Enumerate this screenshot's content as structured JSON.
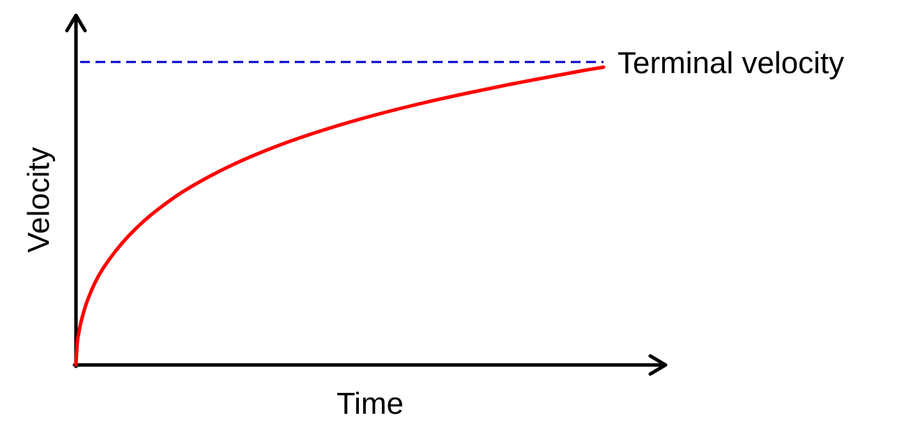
{
  "chart_data": {
    "type": "line",
    "title": "",
    "xlabel": "Time",
    "ylabel": "Velocity",
    "grid": false,
    "xlim": [
      0,
      1
    ],
    "ylim": [
      0,
      1
    ],
    "series": [
      {
        "color": "#ff0000",
        "x": [
          0,
          0.0025,
          0.005,
          0.01,
          0.02,
          0.035,
          0.05,
          0.075,
          0.1,
          0.13,
          0.16,
          0.2,
          0.25,
          0.3,
          0.36,
          0.42,
          0.5,
          0.58,
          0.66,
          0.74,
          0.82,
          0.9,
          0.96,
          1.0
        ],
        "y": [
          0,
          0.063,
          0.089,
          0.126,
          0.178,
          0.233,
          0.274,
          0.327,
          0.371,
          0.415,
          0.452,
          0.495,
          0.539,
          0.577,
          0.616,
          0.65,
          0.689,
          0.723,
          0.753,
          0.78,
          0.805,
          0.828,
          0.845,
          0.855
        ]
      }
    ],
    "reference_lines": [
      {
        "label": "Terminal velocity",
        "y": 0.87,
        "x_range": [
          0,
          1
        ],
        "color": "#0000cc",
        "style": "dashed"
      }
    ],
    "axis_color": "#000000",
    "arrows": true
  }
}
